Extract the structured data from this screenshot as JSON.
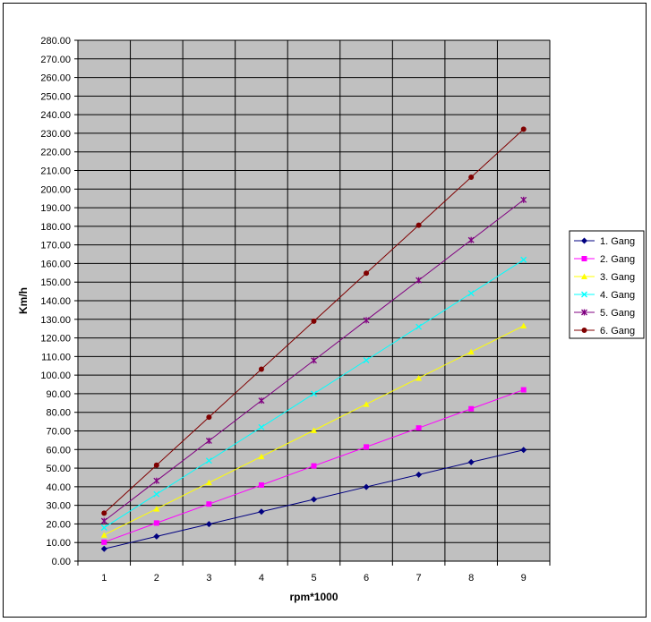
{
  "chart_data": {
    "type": "line",
    "xlabel": "rpm*1000",
    "ylabel": "Km/h",
    "x": [
      1,
      2,
      3,
      4,
      5,
      6,
      7,
      8,
      9
    ],
    "x_tick_labels": [
      "1",
      "2",
      "3",
      "4",
      "5",
      "6",
      "7",
      "8",
      "9"
    ],
    "ylim": [
      0,
      280
    ],
    "y_tick_step": 10,
    "y_tick_labels": [
      "0.00",
      "10.00",
      "20.00",
      "30.00",
      "40.00",
      "50.00",
      "60.00",
      "70.00",
      "80.00",
      "90.00",
      "100.00",
      "110.00",
      "120.00",
      "130.00",
      "140.00",
      "150.00",
      "160.00",
      "170.00",
      "180.00",
      "190.00",
      "200.00",
      "210.00",
      "220.00",
      "230.00",
      "240.00",
      "250.00",
      "260.00",
      "270.00",
      "280.00"
    ],
    "grid": true,
    "plot_background": "#c0c0c0",
    "legend_position": "right",
    "series": [
      {
        "name": "1. Gang",
        "color": "#000080",
        "marker": "diamond",
        "values": [
          6.6,
          13.3,
          19.9,
          26.6,
          33.2,
          39.9,
          46.5,
          53.2,
          59.8
        ]
      },
      {
        "name": "2. Gang",
        "color": "#ff00ff",
        "marker": "square",
        "values": [
          10.2,
          20.5,
          30.7,
          40.9,
          51.2,
          61.4,
          71.6,
          81.9,
          92.1
        ]
      },
      {
        "name": "3. Gang",
        "color": "#ffff00",
        "marker": "triangle",
        "values": [
          14.1,
          28.1,
          42.2,
          56.2,
          70.3,
          84.4,
          98.4,
          112.5,
          126.5
        ]
      },
      {
        "name": "4. Gang",
        "color": "#00ffff",
        "marker": "x",
        "values": [
          18.0,
          36.0,
          54.0,
          72.0,
          90.0,
          108.0,
          126.0,
          144.0,
          162.0
        ]
      },
      {
        "name": "5. Gang",
        "color": "#800080",
        "marker": "star",
        "values": [
          21.6,
          43.2,
          64.7,
          86.3,
          107.9,
          129.5,
          151.0,
          172.6,
          194.2
        ]
      },
      {
        "name": "6. Gang",
        "color": "#800000",
        "marker": "circle",
        "values": [
          25.8,
          51.6,
          77.4,
          103.2,
          129.0,
          154.8,
          180.6,
          206.4,
          232.2
        ]
      }
    ]
  }
}
